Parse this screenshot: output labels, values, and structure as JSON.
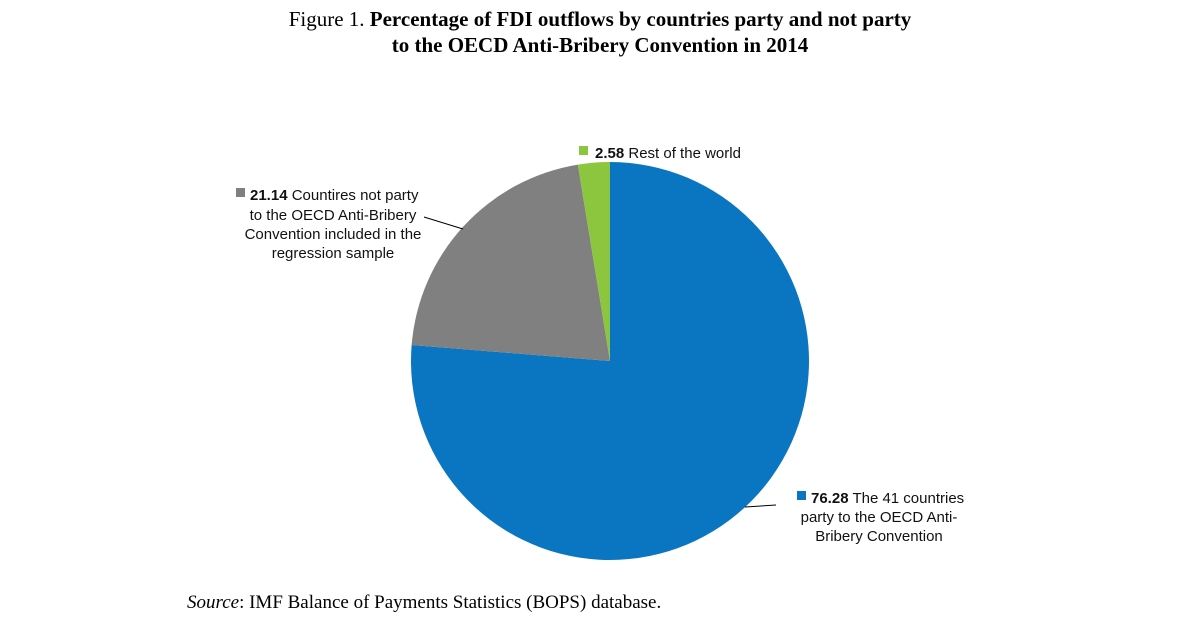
{
  "title": {
    "prefix": "Figure 1.",
    "line1": "Percentage of FDI outflows by countries party and not party",
    "line2": "to the OECD Anti-Bribery Convention in 2014"
  },
  "source": {
    "label": "Source",
    "text": ": IMF Balance of Payments Statistics (BOPS) database."
  },
  "chart_data": {
    "type": "pie",
    "start_angle": "12 o'clock",
    "direction": "clockwise",
    "slices": [
      {
        "value": 76.28,
        "value_label": "76.28",
        "label_lines": [
          "The 41 countries",
          "party to the OECD Anti-",
          "Bribery Convention"
        ],
        "color": "#0a76c1"
      },
      {
        "value": 21.14,
        "value_label": "21.14",
        "label_lines": [
          "Countires not party",
          "to the OECD Anti-Bribery",
          "Convention included in the",
          "regression sample"
        ],
        "color": "#808080"
      },
      {
        "value": 2.58,
        "value_label": "2.58",
        "label_lines": [
          "Rest of the world"
        ],
        "color": "#8cc63f"
      }
    ]
  }
}
